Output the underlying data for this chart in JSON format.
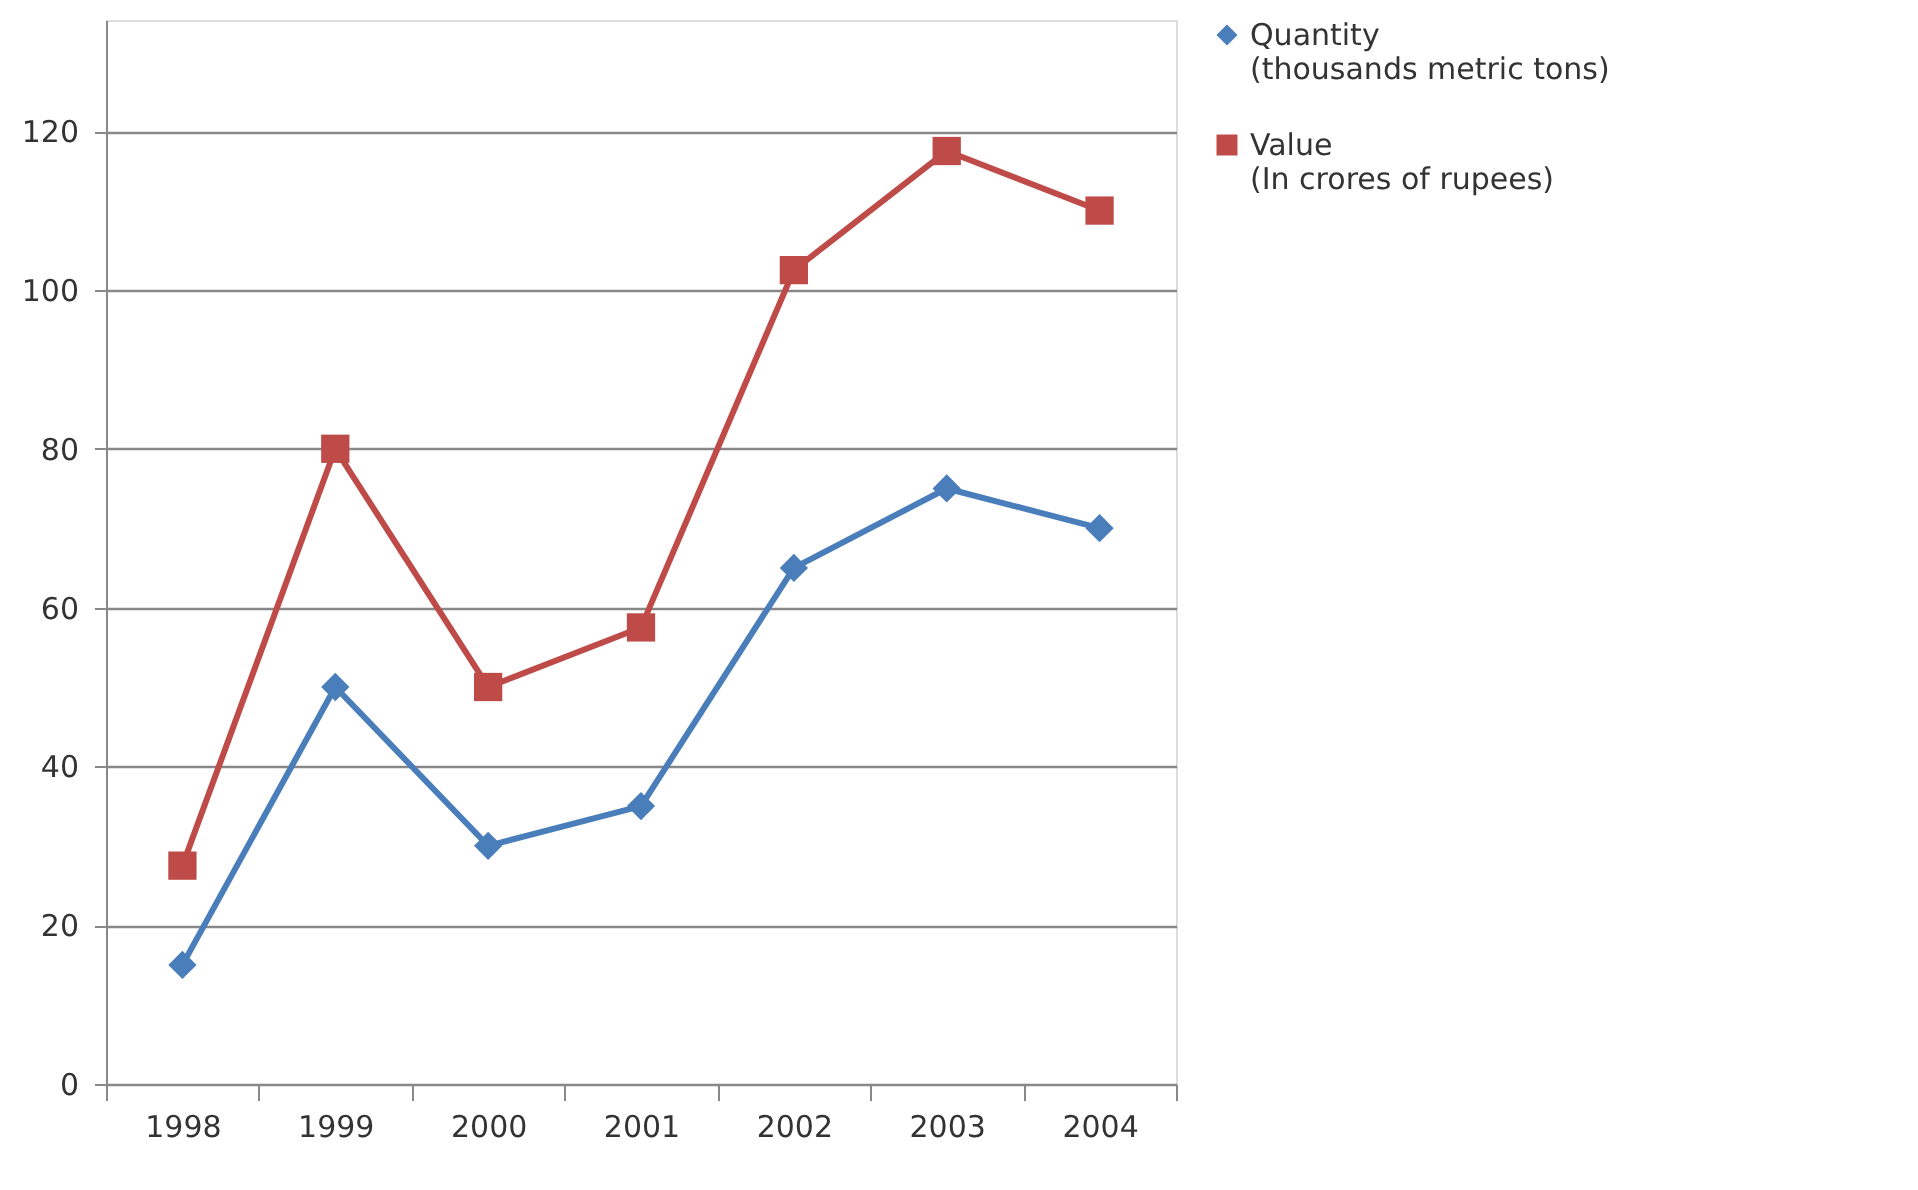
{
  "chart_data": {
    "type": "line",
    "categories": [
      "1998",
      "1999",
      "2000",
      "2001",
      "2002",
      "2003",
      "2004"
    ],
    "series": [
      {
        "name": "Quantity\n(thousands metric tons)",
        "color": "#4a7ebb",
        "marker": "diamond",
        "values": [
          15,
          50,
          30,
          35,
          65,
          75,
          70
        ]
      },
      {
        "name": "Value\n(In crores of rupees)",
        "color": "#be4b48",
        "marker": "square",
        "values": [
          27.5,
          80,
          50,
          57.5,
          102.5,
          117.5,
          110
        ]
      }
    ],
    "ylim": [
      0,
      134
    ],
    "yticks": [
      0,
      20,
      40,
      60,
      80,
      100,
      120
    ],
    "grid": "y",
    "legend": "right",
    "line_style": "solid"
  }
}
